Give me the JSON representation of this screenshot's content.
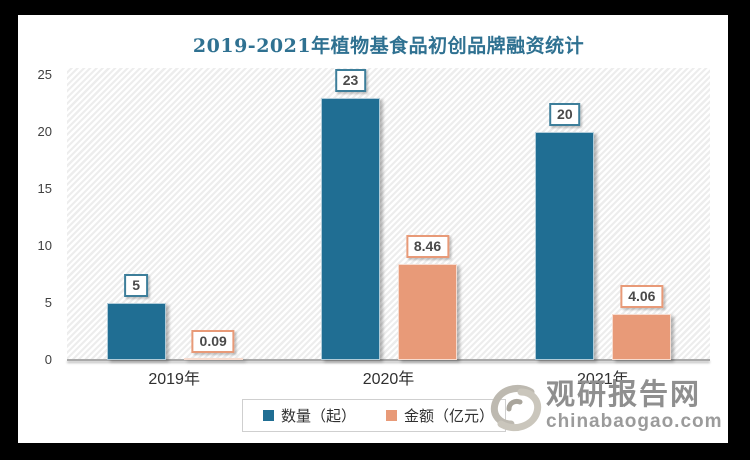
{
  "title": {
    "text": "2019-2021年植物基食品初创品牌融资统计",
    "color": "#2F7191"
  },
  "chart_data": {
    "type": "bar",
    "title": "2019-2021年植物基食品初创品牌融资统计",
    "categories": [
      "2019年",
      "2020年",
      "2021年"
    ],
    "series": [
      {
        "name": "数量（起）",
        "values": [
          5,
          23,
          20
        ],
        "data_labels": [
          "5",
          "23",
          "20"
        ],
        "color": "#206E93",
        "label_border_color": "#3D7E9A"
      },
      {
        "name": "金额（亿元）",
        "values": [
          0.09,
          8.46,
          4.06
        ],
        "data_labels": [
          "0.09",
          "8.46",
          "4.06"
        ],
        "color": "#E89A78",
        "label_border_color": "#E89A78"
      }
    ],
    "xlabel": "",
    "ylabel": "",
    "ylim": [
      0,
      25
    ],
    "yticks": [
      0,
      5,
      10,
      15,
      20,
      25
    ],
    "grid": false,
    "legend_position": "bottom",
    "plot_background": "diagonal-hatch"
  },
  "watermark": {
    "brand": "观研报告网",
    "domain": "chinabaogao.com"
  }
}
